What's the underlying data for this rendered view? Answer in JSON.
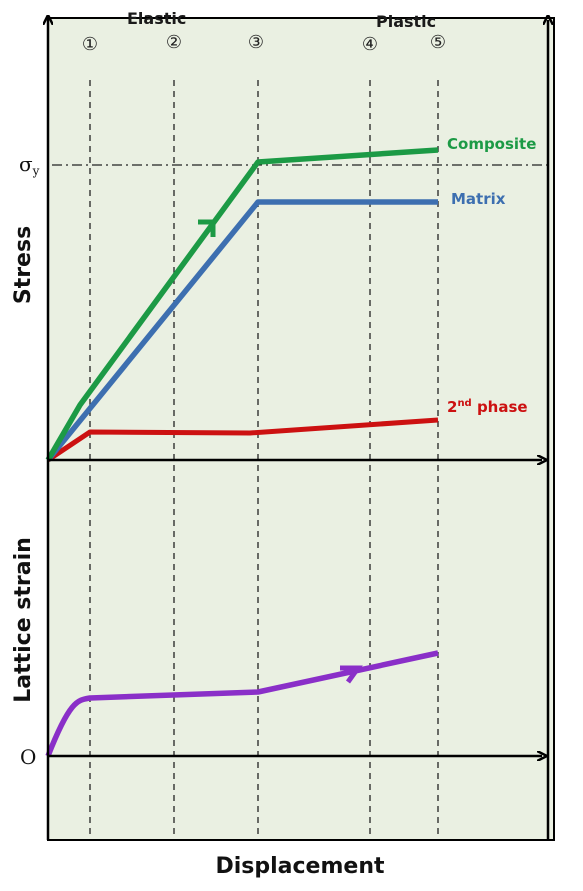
{
  "phase_labels": {
    "elastic": "Elastic",
    "plastic": "Plastic"
  },
  "markers": [
    "①",
    "②",
    "③",
    "④",
    "⑤"
  ],
  "axes": {
    "stress": "Stress",
    "lattice_strain": "Lattice strain",
    "displacement": "Displacement",
    "yield_symbol": "σ",
    "yield_subscript": "y",
    "origin": "O"
  },
  "curves": {
    "composite": {
      "label": "Composite",
      "color": "#1c9a45"
    },
    "matrix": {
      "label": "Matrix",
      "color": "#3d6fb0"
    },
    "second_phase": {
      "label_main": "2",
      "label_sup": "nd",
      "label_rest": " phase",
      "color": "#cc1111"
    },
    "lattice": {
      "color": "#8a2fc8"
    }
  },
  "colors": {
    "background": "#eaf0e2",
    "axis": "#000000"
  }
}
